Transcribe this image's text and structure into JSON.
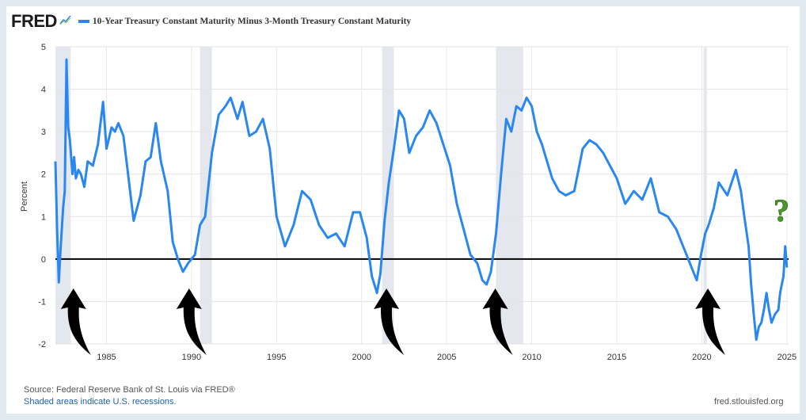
{
  "header": {
    "logo_text": "FRED",
    "series_title": "10-Year Treasury Constant Maturity Minus 3-Month Treasury Constant Maturity"
  },
  "footer": {
    "source": "Source: Federal Reserve Bank of St. Louis via FRED®",
    "shaded_note": "Shaded areas indicate U.S. recessions.",
    "site": "fred.stlouisfed.org"
  },
  "annotation": {
    "question_mark": "?",
    "question_color": "#4a9a2a"
  },
  "colors": {
    "series": "#2b87f0",
    "recession": "#e4e8ee",
    "zero_line": "#000000",
    "arrow": "#000000"
  },
  "chart_data": {
    "type": "line",
    "title": "10-Year Treasury Constant Maturity Minus 3-Month Treasury Constant Maturity",
    "ylabel": "Percent",
    "xlabel": "",
    "xlim": [
      1982.0,
      2025.1
    ],
    "ylim": [
      -2,
      5
    ],
    "x_ticks": [
      1985,
      1990,
      1995,
      2000,
      2005,
      2010,
      2015,
      2020,
      2025
    ],
    "y_ticks": [
      -2,
      -1,
      0,
      1,
      2,
      3,
      4,
      5
    ],
    "grid": true,
    "reference_line_y": 0,
    "recessions": [
      [
        1981.6,
        1982.9
      ],
      [
        1990.5,
        1991.2
      ],
      [
        2001.2,
        2001.9
      ],
      [
        2007.9,
        2009.5
      ],
      [
        2020.1,
        2020.3
      ]
    ],
    "arrows_at_years": [
      1982.5,
      1989.3,
      2000.9,
      2007.3,
      2019.8
    ],
    "series": [
      {
        "name": "10-Year Treasury Constant Maturity Minus 3-Month Treasury Constant Maturity",
        "x": [
          1982.0,
          1982.1,
          1982.2,
          1982.3,
          1982.45,
          1982.55,
          1982.65,
          1982.75,
          1982.85,
          1983.0,
          1983.1,
          1983.2,
          1983.35,
          1983.5,
          1983.7,
          1983.9,
          1984.2,
          1984.5,
          1984.8,
          1985.0,
          1985.3,
          1985.5,
          1985.7,
          1986.0,
          1986.3,
          1986.6,
          1987.0,
          1987.3,
          1987.6,
          1987.9,
          1988.2,
          1988.6,
          1988.9,
          1989.2,
          1989.5,
          1989.8,
          1990.2,
          1990.5,
          1990.8,
          1991.2,
          1991.6,
          1992.0,
          1992.3,
          1992.7,
          1993.0,
          1993.4,
          1993.8,
          1994.2,
          1994.6,
          1995.0,
          1995.5,
          1996.0,
          1996.5,
          1997.0,
          1997.5,
          1998.0,
          1998.5,
          1999.0,
          1999.5,
          1999.9,
          2000.3,
          2000.6,
          2000.9,
          2001.1,
          2001.35,
          2001.6,
          2001.9,
          2002.2,
          2002.5,
          2002.8,
          2003.2,
          2003.6,
          2004.0,
          2004.4,
          2004.8,
          2005.2,
          2005.6,
          2006.0,
          2006.4,
          2006.8,
          2007.1,
          2007.35,
          2007.6,
          2007.9,
          2008.2,
          2008.5,
          2008.8,
          2009.1,
          2009.4,
          2009.7,
          2010.0,
          2010.3,
          2010.6,
          2010.9,
          2011.2,
          2011.6,
          2012.0,
          2012.5,
          2013.0,
          2013.4,
          2013.8,
          2014.2,
          2014.6,
          2015.0,
          2015.5,
          2016.0,
          2016.5,
          2017.0,
          2017.5,
          2018.0,
          2018.5,
          2019.0,
          2019.4,
          2019.7,
          2019.95,
          2020.2,
          2020.4,
          2020.7,
          2021.0,
          2021.5,
          2022.0,
          2022.3,
          2022.5,
          2022.75,
          2022.9,
          2023.05,
          2023.2,
          2023.35,
          2023.5,
          2023.65,
          2023.8,
          2023.95,
          2024.1,
          2024.3,
          2024.5,
          2024.6,
          2024.8,
          2024.9,
          2025.0
        ],
        "values": [
          2.3,
          0.7,
          -0.55,
          0.2,
          1.2,
          1.6,
          4.7,
          3.1,
          2.8,
          2.0,
          2.4,
          1.9,
          2.1,
          2.0,
          1.7,
          2.3,
          2.2,
          2.7,
          3.7,
          2.6,
          3.1,
          3.0,
          3.2,
          2.9,
          1.9,
          0.9,
          1.5,
          2.3,
          2.4,
          3.2,
          2.3,
          1.6,
          0.4,
          0.0,
          -0.3,
          -0.1,
          0.1,
          0.8,
          1.0,
          2.5,
          3.4,
          3.6,
          3.8,
          3.3,
          3.7,
          2.9,
          3.0,
          3.3,
          2.6,
          1.0,
          0.3,
          0.8,
          1.6,
          1.4,
          0.8,
          0.5,
          0.6,
          0.3,
          1.1,
          1.1,
          0.5,
          -0.4,
          -0.8,
          -0.35,
          0.9,
          1.8,
          2.6,
          3.5,
          3.3,
          2.5,
          2.9,
          3.1,
          3.5,
          3.2,
          2.7,
          2.2,
          1.3,
          0.7,
          0.1,
          -0.1,
          -0.5,
          -0.6,
          -0.3,
          0.6,
          2.0,
          3.3,
          3.0,
          3.6,
          3.5,
          3.8,
          3.6,
          3.0,
          2.7,
          2.3,
          1.9,
          1.6,
          1.5,
          1.6,
          2.6,
          2.8,
          2.7,
          2.5,
          2.2,
          1.9,
          1.3,
          1.6,
          1.4,
          1.9,
          1.1,
          1.0,
          0.7,
          0.2,
          -0.2,
          -0.5,
          0.1,
          0.6,
          0.8,
          1.2,
          1.8,
          1.5,
          2.1,
          1.6,
          1.0,
          0.3,
          -0.6,
          -1.3,
          -1.9,
          -1.6,
          -1.5,
          -1.2,
          -0.8,
          -1.2,
          -1.5,
          -1.3,
          -1.2,
          -0.8,
          -0.4,
          0.3,
          -0.2
        ]
      }
    ]
  }
}
